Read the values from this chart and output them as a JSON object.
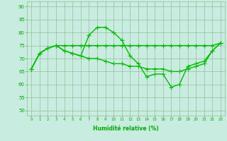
{
  "line1": [
    66,
    72,
    74,
    75,
    73,
    72,
    71,
    79,
    82,
    82,
    80,
    77,
    71,
    68,
    63,
    64,
    64,
    59,
    60,
    67,
    68,
    69,
    73,
    76
  ],
  "line2": [
    66,
    72,
    74,
    75,
    75,
    75,
    75,
    75,
    75,
    75,
    75,
    75,
    75,
    75,
    75,
    75,
    75,
    75,
    75,
    75,
    75,
    75,
    75,
    76
  ],
  "line3": [
    66,
    72,
    74,
    75,
    73,
    72,
    71,
    70,
    70,
    69,
    68,
    68,
    67,
    67,
    66,
    66,
    66,
    65,
    65,
    66,
    67,
    68,
    73,
    76
  ],
  "x": [
    0,
    1,
    2,
    3,
    4,
    5,
    6,
    7,
    8,
    9,
    10,
    11,
    12,
    13,
    14,
    15,
    16,
    17,
    18,
    19,
    20,
    21,
    22,
    23
  ],
  "line_color": "#00bb00",
  "bg_color": "#c8ece0",
  "grid_color": "#99bb99",
  "xlabel": "Humidité relative (%)",
  "ylabel_ticks": [
    50,
    55,
    60,
    65,
    70,
    75,
    80,
    85,
    90
  ],
  "ylim": [
    48,
    92
  ],
  "xlim": [
    -0.5,
    23.5
  ],
  "xlabel_color": "#00aa00",
  "tick_color": "#00aa00",
  "markersize": 2.5,
  "linewidth": 1.0
}
